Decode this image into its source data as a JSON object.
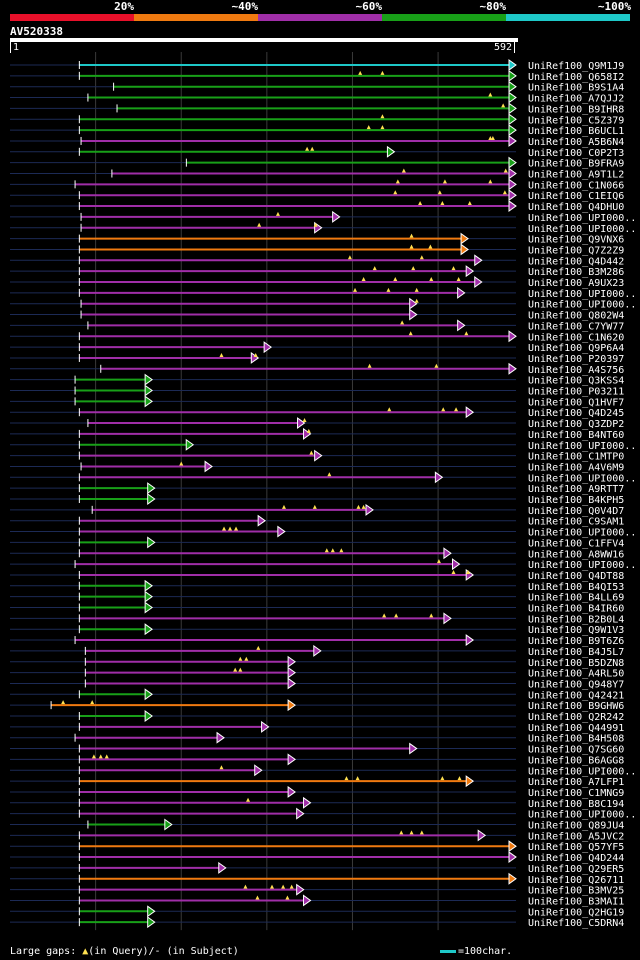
{
  "query_id": "AV520338",
  "ruler": {
    "start": "1",
    "end": "592"
  },
  "legend": [
    {
      "label": "20%",
      "color": "#e8102a"
    },
    {
      "label": "~40%",
      "color": "#f07a10"
    },
    {
      "label": "~60%",
      "color": "#a02ea8"
    },
    {
      "label": "~80%",
      "color": "#18a018"
    },
    {
      "label": "~100%",
      "color": "#1ec8c8"
    }
  ],
  "query_length": 592,
  "footer": {
    "gaps_prefix": "Large gaps: ",
    "gap_query_symbol": "▲",
    "gaps_query_text": "(in Query)/",
    "gap_subject_symbol": "-",
    "gaps_subject_text": " (in Subject)",
    "scale_text": "=100char."
  },
  "hits": [
    {
      "id": "UniRef100_Q9M1J9",
      "start": 82,
      "end": 592,
      "cls": 4,
      "marks": []
    },
    {
      "id": "UniRef100_Q658I2",
      "start": 82,
      "end": 592,
      "cls": 3,
      "marks": [
        410,
        436
      ]
    },
    {
      "id": "UniRef100_B9S1A4",
      "start": 122,
      "end": 592,
      "cls": 3,
      "marks": []
    },
    {
      "id": "UniRef100_A7QJJ2",
      "start": 92,
      "end": 592,
      "cls": 3,
      "marks": [
        562
      ]
    },
    {
      "id": "UniRef100_B9IHR8",
      "start": 126,
      "end": 592,
      "cls": 3,
      "marks": [
        577
      ]
    },
    {
      "id": "UniRef100_C5Z379",
      "start": 82,
      "end": 592,
      "cls": 3,
      "marks": [
        436
      ]
    },
    {
      "id": "UniRef100_B6UCL1",
      "start": 82,
      "end": 592,
      "cls": 3,
      "marks": [
        420,
        436
      ]
    },
    {
      "id": "UniRef100_A5B6N4",
      "start": 84,
      "end": 592,
      "cls": 2,
      "marks": [
        562,
        565
      ]
    },
    {
      "id": "UniRef100_C0P2T3",
      "start": 82,
      "end": 450,
      "cls": 3,
      "marks": [
        348,
        354
      ]
    },
    {
      "id": "UniRef100_B9FRA9",
      "start": 207,
      "end": 592,
      "cls": 3,
      "marks": []
    },
    {
      "id": "UniRef100_A9T1L2",
      "start": 120,
      "end": 592,
      "cls": 2,
      "marks": [
        461,
        580
      ]
    },
    {
      "id": "UniRef100_C1N066",
      "start": 77,
      "end": 592,
      "cls": 2,
      "marks": [
        454,
        509,
        562
      ]
    },
    {
      "id": "UniRef100_C1EIQ6",
      "start": 82,
      "end": 592,
      "cls": 2,
      "marks": [
        451,
        503,
        579
      ]
    },
    {
      "id": "UniRef100_Q4DHU0",
      "start": 82,
      "end": 592,
      "cls": 2,
      "marks": [
        480,
        506,
        538
      ]
    },
    {
      "id": "UniRef100_UPI000..1",
      "start": 84,
      "end": 386,
      "cls": 2,
      "marks": [
        314
      ]
    },
    {
      "id": "UniRef100_UPI000..2",
      "start": 84,
      "end": 365,
      "cls": 2,
      "marks": [
        292,
        358
      ]
    },
    {
      "id": "UniRef100_Q9VNX6",
      "start": 82,
      "end": 536,
      "cls": 1,
      "marks": [
        470
      ]
    },
    {
      "id": "UniRef100_Q7Z2Z9",
      "start": 82,
      "end": 536,
      "cls": 1,
      "marks": [
        470,
        492
      ]
    },
    {
      "id": "UniRef100_Q4D442",
      "start": 82,
      "end": 552,
      "cls": 2,
      "marks": [
        398,
        482
      ]
    },
    {
      "id": "UniRef100_B3M286",
      "start": 82,
      "end": 542,
      "cls": 2,
      "marks": [
        427,
        472,
        519
      ]
    },
    {
      "id": "UniRef100_A9UX23",
      "start": 82,
      "end": 552,
      "cls": 2,
      "marks": [
        414,
        451,
        493,
        525
      ]
    },
    {
      "id": "UniRef100_UPI000..3",
      "start": 82,
      "end": 532,
      "cls": 2,
      "marks": [
        404,
        443,
        476
      ]
    },
    {
      "id": "UniRef100_UPI000..4",
      "start": 84,
      "end": 476,
      "cls": 2,
      "marks": [
        476
      ]
    },
    {
      "id": "UniRef100_Q802W4",
      "start": 84,
      "end": 476,
      "cls": 2,
      "marks": []
    },
    {
      "id": "UniRef100_C7YW77",
      "start": 92,
      "end": 532,
      "cls": 2,
      "marks": [
        459
      ]
    },
    {
      "id": "UniRef100_C1N620",
      "start": 82,
      "end": 592,
      "cls": 2,
      "marks": [
        469,
        534
      ]
    },
    {
      "id": "UniRef100_Q9P6A4",
      "start": 82,
      "end": 306,
      "cls": 2,
      "marks": []
    },
    {
      "id": "UniRef100_P20397",
      "start": 82,
      "end": 291,
      "cls": 2,
      "marks": [
        248,
        288
      ]
    },
    {
      "id": "UniRef100_A4S756",
      "start": 107,
      "end": 592,
      "cls": 2,
      "marks": [
        421,
        499
      ]
    },
    {
      "id": "UniRef100_Q3KSS4",
      "start": 77,
      "end": 167,
      "cls": 3,
      "marks": []
    },
    {
      "id": "UniRef100_P03211",
      "start": 77,
      "end": 167,
      "cls": 3,
      "marks": []
    },
    {
      "id": "UniRef100_Q1HVF7",
      "start": 77,
      "end": 167,
      "cls": 3,
      "marks": []
    },
    {
      "id": "UniRef100_Q4D245",
      "start": 82,
      "end": 542,
      "cls": 2,
      "marks": [
        444,
        507,
        522
      ]
    },
    {
      "id": "UniRef100_Q3ZDP2",
      "start": 92,
      "end": 345,
      "cls": 2,
      "marks": [
        345
      ]
    },
    {
      "id": "UniRef100_B4NT60",
      "start": 82,
      "end": 352,
      "cls": 2,
      "marks": [
        350
      ]
    },
    {
      "id": "UniRef100_UPI000..5",
      "start": 82,
      "end": 215,
      "cls": 3,
      "marks": []
    },
    {
      "id": "UniRef100_C1MTP0",
      "start": 82,
      "end": 365,
      "cls": 2,
      "marks": [
        353
      ]
    },
    {
      "id": "UniRef100_A4V6M9",
      "start": 84,
      "end": 237,
      "cls": 2,
      "marks": [
        201
      ]
    },
    {
      "id": "UniRef100_UPI000..6",
      "start": 82,
      "end": 506,
      "cls": 2,
      "marks": [
        374
      ]
    },
    {
      "id": "UniRef100_A9RTT7",
      "start": 82,
      "end": 170,
      "cls": 3,
      "marks": []
    },
    {
      "id": "UniRef100_B4KPH5",
      "start": 82,
      "end": 170,
      "cls": 3,
      "marks": []
    },
    {
      "id": "UniRef100_Q0V4D7",
      "start": 97,
      "end": 425,
      "cls": 2,
      "marks": [
        321,
        357,
        408,
        414
      ]
    },
    {
      "id": "UniRef100_C9SAM1",
      "start": 82,
      "end": 299,
      "cls": 2,
      "marks": []
    },
    {
      "id": "UniRef100_UPI000..7",
      "start": 82,
      "end": 322,
      "cls": 2,
      "marks": [
        251,
        258,
        265
      ]
    },
    {
      "id": "UniRef100_C1FFV4",
      "start": 82,
      "end": 170,
      "cls": 3,
      "marks": []
    },
    {
      "id": "UniRef100_A8WW16",
      "start": 82,
      "end": 516,
      "cls": 2,
      "marks": [
        371,
        378,
        388
      ]
    },
    {
      "id": "UniRef100_UPI000..8",
      "start": 77,
      "end": 526,
      "cls": 2,
      "marks": [
        502
      ]
    },
    {
      "id": "UniRef100_Q4DT88",
      "start": 82,
      "end": 542,
      "cls": 2,
      "marks": [
        519,
        536
      ]
    },
    {
      "id": "UniRef100_B4QI53",
      "start": 82,
      "end": 167,
      "cls": 3,
      "marks": []
    },
    {
      "id": "UniRef100_B4LL69",
      "start": 82,
      "end": 167,
      "cls": 3,
      "marks": []
    },
    {
      "id": "UniRef100_B4IR60",
      "start": 82,
      "end": 167,
      "cls": 3,
      "marks": []
    },
    {
      "id": "UniRef100_B2B0L4",
      "start": 82,
      "end": 516,
      "cls": 2,
      "marks": [
        438,
        452,
        493
      ]
    },
    {
      "id": "UniRef100_Q9W1V3",
      "start": 82,
      "end": 167,
      "cls": 3,
      "marks": []
    },
    {
      "id": "UniRef100_B9T6Z6",
      "start": 77,
      "end": 542,
      "cls": 2,
      "marks": []
    },
    {
      "id": "UniRef100_B4J5L7",
      "start": 89,
      "end": 364,
      "cls": 2,
      "marks": [
        291
      ]
    },
    {
      "id": "UniRef100_B5DZN8",
      "start": 89,
      "end": 334,
      "cls": 2,
      "marks": [
        270,
        277
      ]
    },
    {
      "id": "UniRef100_A4RL50",
      "start": 89,
      "end": 334,
      "cls": 2,
      "marks": [
        264,
        270
      ]
    },
    {
      "id": "UniRef100_Q948Y7",
      "start": 89,
      "end": 334,
      "cls": 2,
      "marks": []
    },
    {
      "id": "UniRef100_Q42421",
      "start": 82,
      "end": 167,
      "cls": 3,
      "marks": []
    },
    {
      "id": "UniRef100_B9GHW6",
      "start": 49,
      "end": 334,
      "cls": 1,
      "marks": [
        63,
        97
      ]
    },
    {
      "id": "UniRef100_Q2R242",
      "start": 82,
      "end": 167,
      "cls": 3,
      "marks": []
    },
    {
      "id": "UniRef100_Q44991",
      "start": 82,
      "end": 303,
      "cls": 2,
      "marks": []
    },
    {
      "id": "UniRef100_B4H508",
      "start": 77,
      "end": 251,
      "cls": 2,
      "marks": []
    },
    {
      "id": "UniRef100_Q7SG60",
      "start": 82,
      "end": 476,
      "cls": 2,
      "marks": []
    },
    {
      "id": "UniRef100_B6AGG8",
      "start": 82,
      "end": 334,
      "cls": 2,
      "marks": [
        99,
        107,
        114
      ]
    },
    {
      "id": "UniRef100_UPI000..9",
      "start": 82,
      "end": 295,
      "cls": 2,
      "marks": [
        248
      ]
    },
    {
      "id": "UniRef100_A7LFP1",
      "start": 82,
      "end": 542,
      "cls": 1,
      "marks": [
        394,
        407,
        506,
        526
      ]
    },
    {
      "id": "UniRef100_C1MNG9",
      "start": 82,
      "end": 334,
      "cls": 2,
      "marks": []
    },
    {
      "id": "UniRef100_B8C194",
      "start": 82,
      "end": 352,
      "cls": 2,
      "marks": [
        279
      ]
    },
    {
      "id": "UniRef100_UPI000..10",
      "start": 82,
      "end": 344,
      "cls": 2,
      "marks": []
    },
    {
      "id": "UniRef100_Q89JU4",
      "start": 92,
      "end": 190,
      "cls": 3,
      "marks": []
    },
    {
      "id": "UniRef100_A5JVC2",
      "start": 82,
      "end": 556,
      "cls": 2,
      "marks": [
        458,
        470,
        482
      ]
    },
    {
      "id": "UniRef100_Q57YF5",
      "start": 82,
      "end": 592,
      "cls": 1,
      "marks": []
    },
    {
      "id": "UniRef100_Q4D244",
      "start": 82,
      "end": 592,
      "cls": 2,
      "marks": []
    },
    {
      "id": "UniRef100_Q29ER5",
      "start": 82,
      "end": 253,
      "cls": 2,
      "marks": []
    },
    {
      "id": "UniRef100_Q26711",
      "start": 82,
      "end": 592,
      "cls": 1,
      "marks": []
    },
    {
      "id": "UniRef100_B3MV25",
      "start": 82,
      "end": 344,
      "cls": 2,
      "marks": [
        276,
        307,
        320,
        330
      ]
    },
    {
      "id": "UniRef100_B3MAI1",
      "start": 82,
      "end": 352,
      "cls": 2,
      "marks": [
        290,
        325
      ]
    },
    {
      "id": "UniRef100_Q2HG19",
      "start": 82,
      "end": 170,
      "cls": 3,
      "marks": []
    },
    {
      "id": "UniRef100_C5DRN4",
      "start": 82,
      "end": 170,
      "cls": 3,
      "marks": []
    }
  ]
}
